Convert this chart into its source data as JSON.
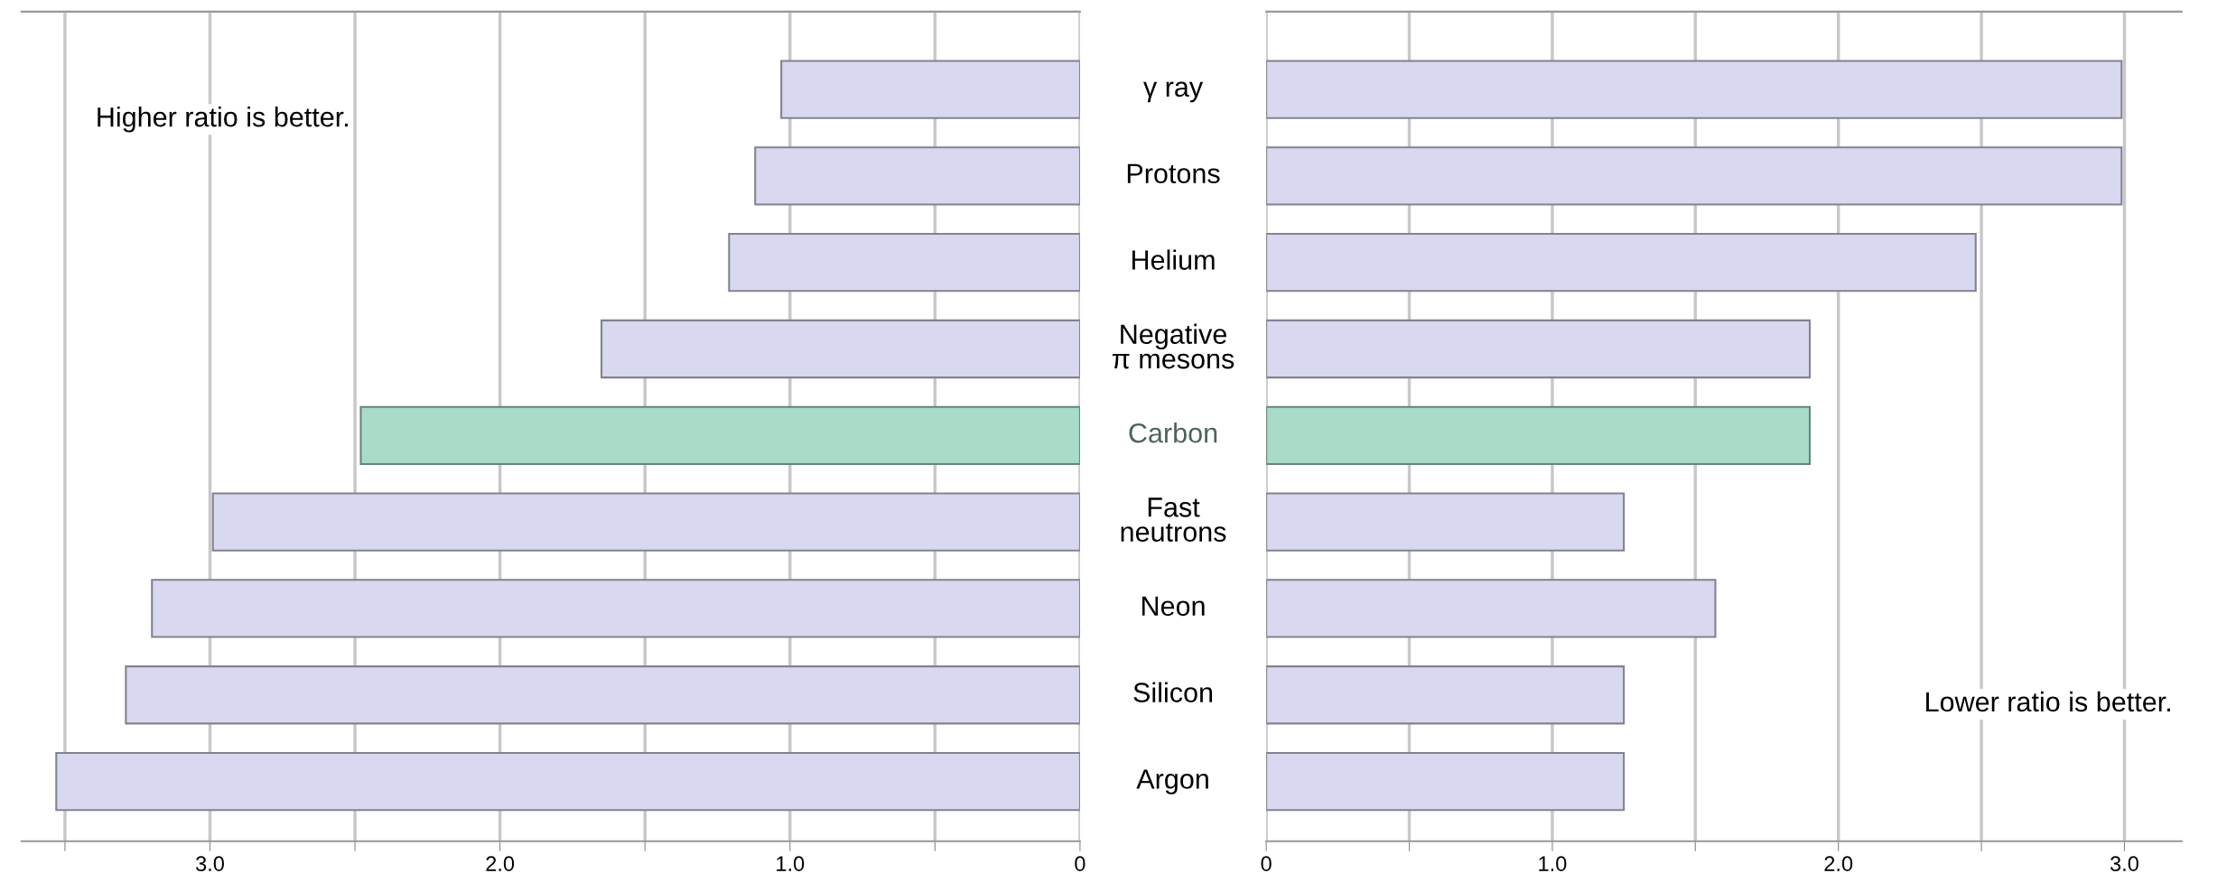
{
  "chart_data": [
    {
      "type": "bar",
      "orientation": "horizontal",
      "categories": [
        "γ ray",
        "Protons",
        "Helium",
        "Negative\nπ mesons",
        "Carbon",
        "Fast\nneutrons",
        "Neon",
        "Silicon",
        "Argon"
      ],
      "values": [
        1.03,
        1.12,
        1.21,
        1.65,
        2.48,
        2.99,
        3.2,
        3.29,
        3.53
      ],
      "colors": [
        "#d8d8f0",
        "#d8d8f0",
        "#d8d8f0",
        "#d8d8f0",
        "#a8dcc8",
        "#d8d8f0",
        "#d8d8f0",
        "#d8d8f0",
        "#d8d8f0"
      ],
      "xlim": [
        3.65,
        0
      ],
      "xticks": [
        {
          "value": 3.5,
          "label": null
        },
        {
          "value": 3.0,
          "label": "3.0"
        },
        {
          "value": 2.5,
          "label": null
        },
        {
          "value": 2.0,
          "label": "2.0"
        },
        {
          "value": 1.5,
          "label": null
        },
        {
          "value": 1.0,
          "label": "1.0"
        },
        {
          "value": 0.5,
          "label": null
        },
        0
      ],
      "grid": "x",
      "annotations": [
        "Higher ratio is better."
      ]
    },
    {
      "type": "bar",
      "orientation": "horizontal",
      "values": [
        2.99,
        2.99,
        2.48,
        1.9,
        1.9,
        1.25,
        1.57,
        1.25,
        1.25
      ],
      "colors": [
        "#d8d8f0",
        "#d8d8f0",
        "#d8d8f0",
        "#d8d8f0",
        "#a8dcc8",
        "#d8d8f0",
        "#d8d8f0",
        "#d8d8f0",
        "#d8d8f0"
      ],
      "xlim": [
        0,
        3.2
      ],
      "xticks": [
        0,
        {
          "value": 0.5,
          "label": null
        },
        {
          "value": 1.0,
          "label": "1.0"
        },
        {
          "value": 1.5,
          "label": null
        },
        {
          "value": 2.0,
          "label": "2.0"
        },
        {
          "value": 2.5,
          "label": null
        },
        {
          "value": 3.0,
          "label": "3.0"
        }
      ],
      "grid": "x",
      "tick_labels": "x",
      "annotations": [
        "Lower ratio is better."
      ]
    }
  ]
}
